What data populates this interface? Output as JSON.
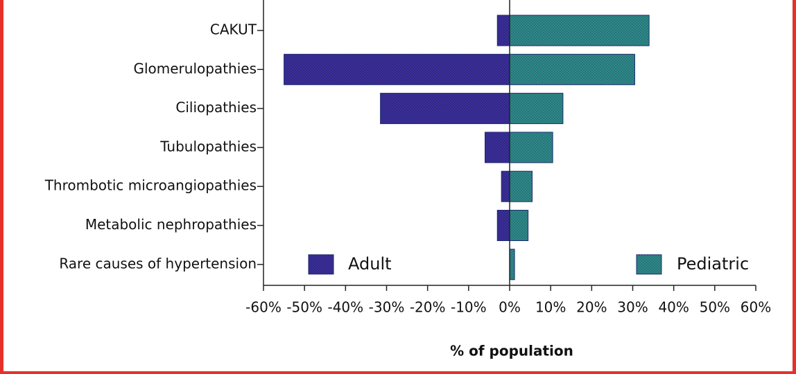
{
  "chart_data": {
    "type": "bar",
    "orientation": "horizontal",
    "xlabel": "% of population",
    "categories": [
      "CAKUT",
      "Glomerulopathies",
      "Ciliopathies",
      "Tubulopathies",
      "Thrombotic microangiopathies",
      "Metabolic nephropathies",
      "Rare causes of hypertension"
    ],
    "series": [
      {
        "name": "Adult",
        "color": "#3b2f9c",
        "values": [
          -3,
          -55,
          -31.5,
          -6,
          -2,
          -3,
          0
        ]
      },
      {
        "name": "Pediatric",
        "color": "#2f8a8c",
        "values": [
          34,
          30.5,
          13,
          10.5,
          5.5,
          4.5,
          1.2
        ]
      }
    ],
    "xlim": [
      -60,
      60
    ],
    "xticks": [
      {
        "value": -60,
        "label": "-60%"
      },
      {
        "value": -50,
        "label": "-50%"
      },
      {
        "value": -40,
        "label": "-40%"
      },
      {
        "value": -30,
        "label": "-30%"
      },
      {
        "value": -20,
        "label": "-20%"
      },
      {
        "value": -10,
        "label": "-10%"
      },
      {
        "value": 0,
        "label": "0%"
      },
      {
        "value": 10,
        "label": "10%"
      },
      {
        "value": 20,
        "label": "20%"
      },
      {
        "value": 30,
        "label": "30%"
      },
      {
        "value": 40,
        "label": "40%"
      },
      {
        "value": 50,
        "label": "50%"
      },
      {
        "value": 60,
        "label": "60%"
      }
    ],
    "grid": false
  }
}
